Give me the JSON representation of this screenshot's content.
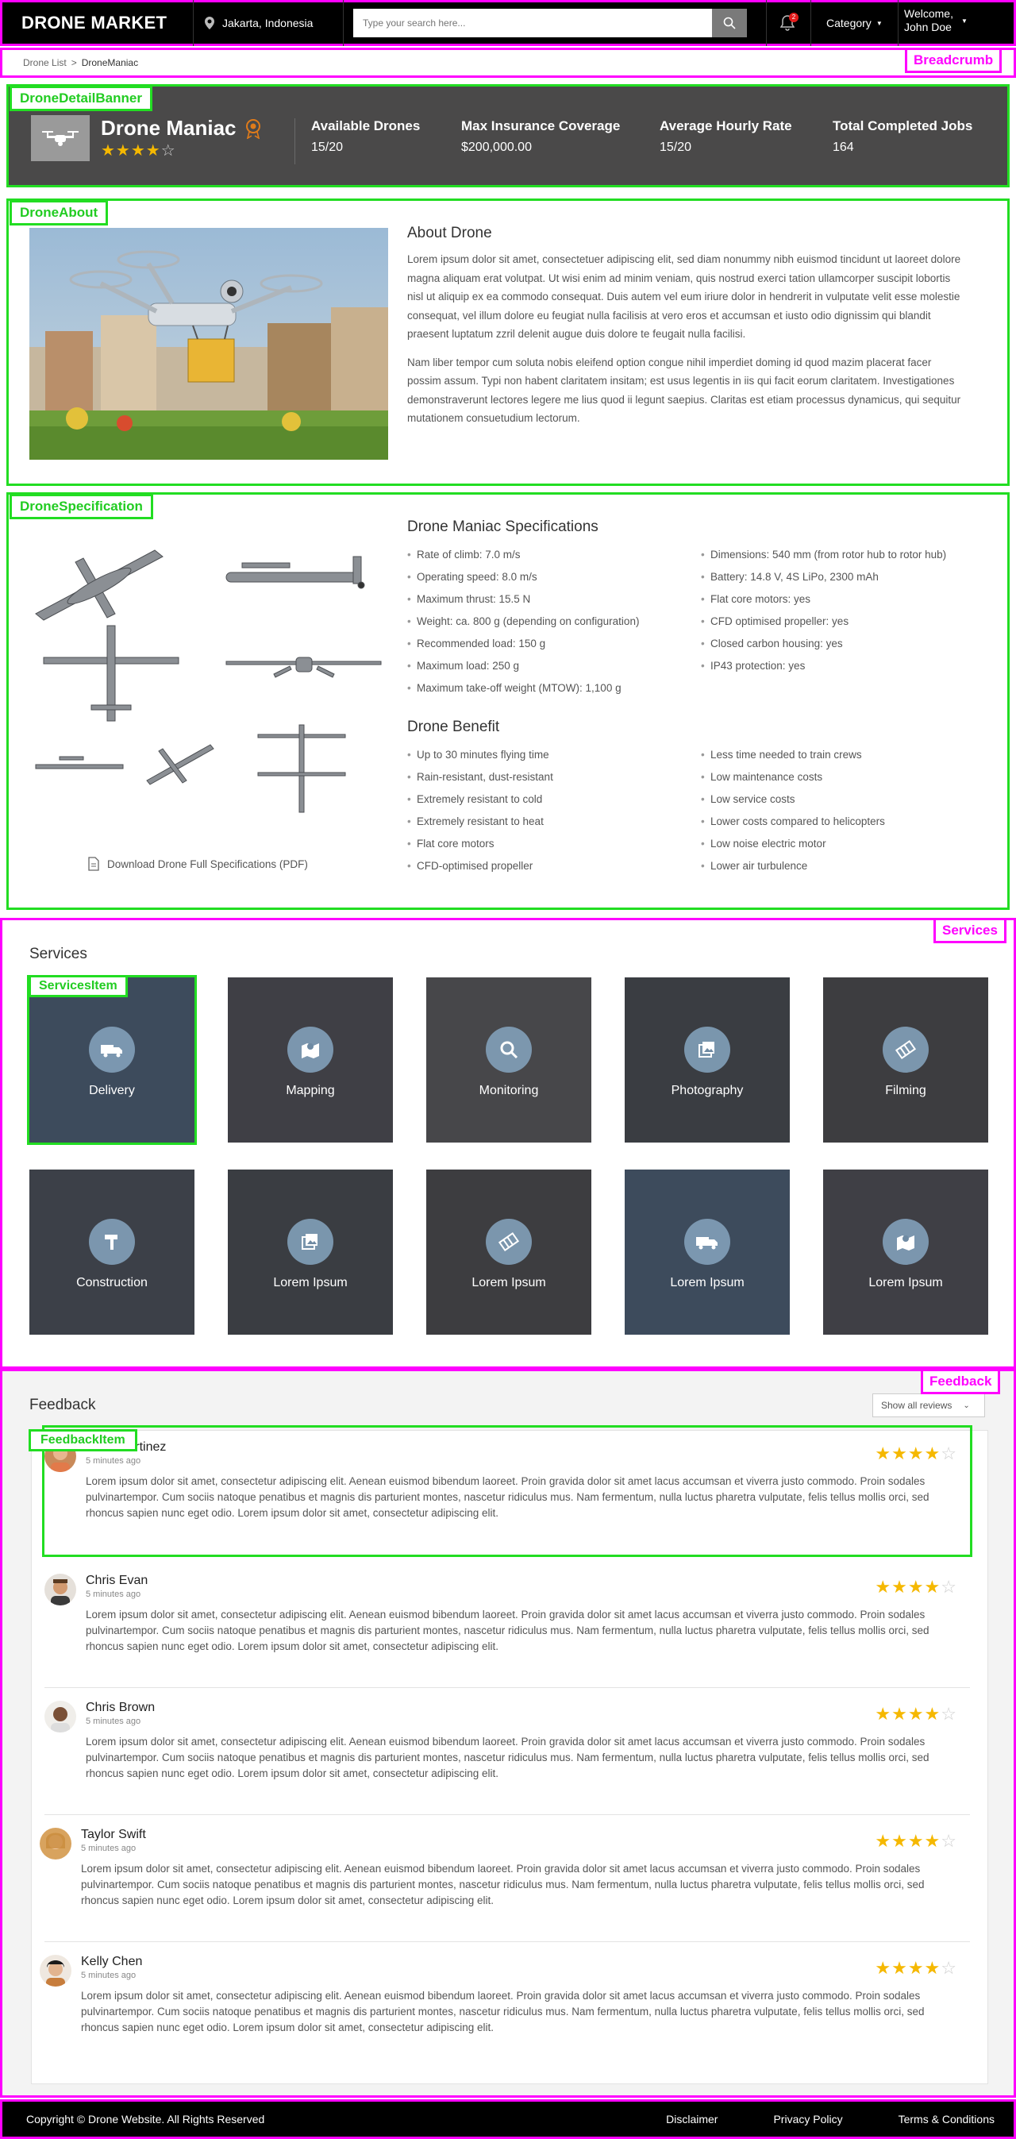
{
  "header": {
    "logo": "DRONE MARKET",
    "location": "Jakarta, Indonesia",
    "search_placeholder": "Type your search here...",
    "notification_count": "2",
    "category_label": "Category",
    "welcome_line1": "Welcome,",
    "welcome_line2": "John Doe"
  },
  "breadcrumb": {
    "items": [
      "Drone List",
      "DroneManiac"
    ],
    "separator": ">",
    "tag": "Breadcrumb"
  },
  "banner": {
    "tag": "DroneDetailBanner",
    "name": "Drone Maniac",
    "rating": 4,
    "rating_max": 5,
    "stats": [
      {
        "title": "Available Drones",
        "value": "15/20"
      },
      {
        "title": "Max Insurance Coverage",
        "value": "$200,000.00"
      },
      {
        "title": "Average Hourly Rate",
        "value": "15/20"
      },
      {
        "title": "Total Completed Jobs",
        "value": "164"
      }
    ]
  },
  "about": {
    "tag": "DroneAbout",
    "title": "About Drone",
    "paragraphs": [
      "Lorem ipsum dolor sit amet, consectetuer adipiscing elit, sed diam nonummy nibh euismod tincidunt ut laoreet dolore magna aliquam erat volutpat. Ut wisi enim ad minim veniam, quis nostrud exerci tation ullamcorper suscipit lobortis nisl ut aliquip ex ea commodo consequat. Duis autem vel eum iriure dolor in hendrerit in vulputate velit esse molestie consequat, vel illum dolore eu feugiat nulla facilisis at vero eros et accumsan et iusto odio dignissim qui blandit praesent luptatum zzril delenit augue duis dolore te feugait nulla facilisi.",
      "Nam liber tempor cum soluta nobis eleifend option congue nihil imperdiet doming id quod mazim placerat facer possim assum. Typi non habent claritatem insitam; est usus legentis in iis qui facit eorum claritatem. Investigationes demonstraverunt lectores legere me lius quod ii legunt saepius. Claritas est etiam processus dynamicus, qui sequitur mutationem consuetudium lectorum."
    ]
  },
  "spec": {
    "tag": "DroneSpecification",
    "title": "Drone Maniac Specifications",
    "left": [
      "Rate of climb: 7.0 m/s",
      "Operating speed: 8.0 m/s",
      "Maximum thrust: 15.5 N",
      "Weight: ca. 800 g (depending on configuration)",
      "Recommended load: 150 g",
      "Maximum load: 250 g",
      "Maximum take-off weight (MTOW): 1,100 g"
    ],
    "right": [
      "Dimensions: 540 mm (from rotor hub to rotor hub)",
      "Battery: 14.8 V, 4S LiPo, 2300 mAh",
      "Flat core motors: yes",
      "CFD optimised propeller: yes",
      "Closed carbon housing: yes",
      "IP43 protection: yes"
    ],
    "benefit_title": "Drone Benefit",
    "benefit_left": [
      "Up to 30 minutes flying time",
      "Rain-resistant, dust-resistant",
      "Extremely resistant to cold",
      "Extremely resistant to heat",
      "Flat core motors",
      "CFD-optimised propeller"
    ],
    "benefit_right": [
      "Less time needed to train crews",
      "Low maintenance costs",
      "Low service costs",
      "Lower costs compared to helicopters",
      "Low noise electric motor",
      "Lower air turbulence"
    ],
    "download": "Download Drone Full Specifications (PDF)"
  },
  "services": {
    "tag": "Services",
    "item_tag": "ServicesItem",
    "title": "Services",
    "items": [
      {
        "label": "Delivery",
        "icon": "truck-icon"
      },
      {
        "label": "Mapping",
        "icon": "map-icon"
      },
      {
        "label": "Monitoring",
        "icon": "search-icon"
      },
      {
        "label": "Photography",
        "icon": "photos-icon"
      },
      {
        "label": "Filming",
        "icon": "film-icon"
      },
      {
        "label": "Construction",
        "icon": "hammer-icon"
      },
      {
        "label": "Lorem Ipsum",
        "icon": "photos-icon"
      },
      {
        "label": "Lorem Ipsum",
        "icon": "film-icon"
      },
      {
        "label": "Lorem Ipsum",
        "icon": "truck-icon"
      },
      {
        "label": "Lorem Ipsum",
        "icon": "map-icon"
      }
    ]
  },
  "feedback": {
    "tag": "Feedback",
    "item_tag": "FeedbackItem",
    "title": "Feedback",
    "filter": "Show all reviews",
    "reviews": [
      {
        "name": "Bella Martinez",
        "time": "5 minutes ago",
        "rating": 4,
        "text": "Lorem ipsum dolor sit amet, consectetur adipiscing elit. Aenean euismod bibendum laoreet. Proin gravida dolor sit amet lacus accumsan et viverra justo commodo. Proin sodales pulvinartempor. Cum sociis natoque penatibus et magnis dis parturient montes, nascetur ridiculus mus. Nam fermentum, nulla luctus pharetra vulputate, felis tellus mollis orci, sed rhoncus sapien nunc eget odio. Lorem ipsum dolor sit amet, consectetur adipiscing elit."
      },
      {
        "name": "Chris Evan",
        "time": "5 minutes ago",
        "rating": 4,
        "text": "Lorem ipsum dolor sit amet, consectetur adipiscing elit. Aenean euismod bibendum laoreet. Proin gravida dolor sit amet lacus accumsan et viverra justo commodo. Proin sodales pulvinartempor. Cum sociis natoque penatibus et magnis dis parturient montes, nascetur ridiculus mus. Nam fermentum, nulla luctus pharetra vulputate, felis tellus mollis orci, sed rhoncus sapien nunc eget odio. Lorem ipsum dolor sit amet, consectetur adipiscing elit."
      },
      {
        "name": "Chris Brown",
        "time": "5 minutes ago",
        "rating": 4,
        "text": "Lorem ipsum dolor sit amet, consectetur adipiscing elit. Aenean euismod bibendum laoreet. Proin gravida dolor sit amet lacus accumsan et viverra justo commodo. Proin sodales pulvinartempor. Cum sociis natoque penatibus et magnis dis parturient montes, nascetur ridiculus mus. Nam fermentum, nulla luctus pharetra vulputate, felis tellus mollis orci, sed rhoncus sapien nunc eget odio. Lorem ipsum dolor sit amet, consectetur adipiscing elit."
      },
      {
        "name": "Taylor Swift",
        "time": "5 minutes ago",
        "rating": 4,
        "text": "Lorem ipsum dolor sit amet, consectetur adipiscing elit. Aenean euismod bibendum laoreet. Proin gravida dolor sit amet lacus accumsan et viverra justo commodo. Proin sodales pulvinartempor. Cum sociis natoque penatibus et magnis dis parturient montes, nascetur ridiculus mus. Nam fermentum, nulla luctus pharetra vulputate, felis tellus mollis orci, sed rhoncus sapien nunc eget odio. Lorem ipsum dolor sit amet, consectetur adipiscing elit."
      },
      {
        "name": "Kelly Chen",
        "time": "5 minutes ago",
        "rating": 4,
        "text": "Lorem ipsum dolor sit amet, consectetur adipiscing elit. Aenean euismod bibendum laoreet. Proin gravida dolor sit amet lacus accumsan et viverra justo commodo. Proin sodales pulvinartempor. Cum sociis natoque penatibus et magnis dis parturient montes, nascetur ridiculus mus. Nam fermentum, nulla luctus pharetra vulputate, felis tellus mollis orci, sed rhoncus sapien nunc eget odio. Lorem ipsum dolor sit amet, consectetur adipiscing elit."
      }
    ]
  },
  "footer": {
    "copyright": "Copyright © Drone Website. All Rights Reserved",
    "links": [
      "Disclaimer",
      "Privacy Policy",
      "Terms & Conditions"
    ]
  },
  "colors": {
    "header_bg": "#000000",
    "banner_bg": "#4a4949",
    "star": "#f5b800",
    "annotation_magenta": "#ff00ff",
    "annotation_green": "#22dd22"
  }
}
